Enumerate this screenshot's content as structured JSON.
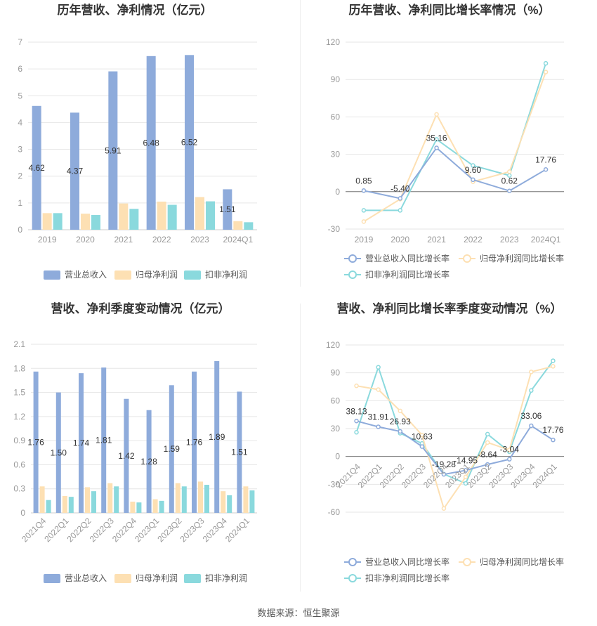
{
  "source": "数据来源：恒生聚源",
  "colors": {
    "revenue": "#8eabdb",
    "netprofit": "#fde0b3",
    "deducted": "#8ad9dd",
    "line_revenue": "#8eabdb",
    "line_netprofit": "#fde0b3",
    "line_deducted": "#8ad9dd",
    "axis": "#999999",
    "grid": "#e6e6e6",
    "title": "#333333"
  },
  "chart_data": [
    {
      "id": "annual-bars",
      "type": "bar",
      "title": "历年营收、净利情况（亿元）",
      "categories": [
        "2019",
        "2020",
        "2021",
        "2022",
        "2023",
        "2024Q1"
      ],
      "ylim": [
        0,
        7
      ],
      "yticks": [
        "0",
        "1",
        "2",
        "3",
        "4",
        "5",
        "6",
        "7"
      ],
      "series": [
        {
          "name": "营业总收入",
          "values": [
            4.62,
            4.37,
            5.91,
            6.48,
            6.52,
            1.51
          ],
          "labels": [
            "4.62",
            "4.37",
            "5.91",
            "6.48",
            "6.52",
            "1.51"
          ]
        },
        {
          "name": "归母净利润",
          "values": [
            0.62,
            0.6,
            0.98,
            1.05,
            1.22,
            0.32
          ]
        },
        {
          "name": "扣非净利润",
          "values": [
            0.62,
            0.55,
            0.78,
            0.93,
            1.06,
            0.28
          ]
        }
      ]
    },
    {
      "id": "annual-lines",
      "type": "line",
      "title": "历年营收、净利同比增长率情况（%）",
      "categories": [
        "2019",
        "2020",
        "2021",
        "2022",
        "2023",
        "2024Q1"
      ],
      "ylim": [
        -30,
        120
      ],
      "yticks": [
        "-30",
        "0",
        "30",
        "60",
        "90",
        "120"
      ],
      "series": [
        {
          "name": "营业总收入同比增长率",
          "values": [
            0.85,
            -5.4,
            35.16,
            9.6,
            0.62,
            17.76
          ],
          "labels": [
            "0.85",
            "-5.40",
            "35.16",
            "9.60",
            "0.62",
            "17.76"
          ]
        },
        {
          "name": "归母净利润同比增长率",
          "values": [
            -24,
            -6,
            62,
            8,
            16,
            96
          ]
        },
        {
          "name": "扣非净利润同比增长率",
          "values": [
            -15,
            -15,
            42,
            21,
            13,
            103
          ]
        }
      ]
    },
    {
      "id": "quarterly-bars",
      "type": "bar",
      "title": "营收、净利季度变动情况（亿元）",
      "categories": [
        "2021Q4",
        "2022Q1",
        "2022Q2",
        "2022Q3",
        "2022Q4",
        "2023Q1",
        "2023Q2",
        "2023Q3",
        "2023Q4",
        "2024Q1"
      ],
      "ylim": [
        0,
        2.1
      ],
      "yticks": [
        "0",
        "0.3",
        "0.6",
        "0.9",
        "1.2",
        "1.5",
        "1.8",
        "2.1"
      ],
      "series": [
        {
          "name": "营业总收入",
          "values": [
            1.76,
            1.5,
            1.74,
            1.81,
            1.42,
            1.28,
            1.59,
            1.76,
            1.89,
            1.51
          ],
          "labels": [
            "1.76",
            "1.50",
            "1.74",
            "1.81",
            "1.42",
            "1.28",
            "1.59",
            "1.76",
            "1.89",
            "1.51"
          ]
        },
        {
          "name": "归母净利润",
          "values": [
            0.33,
            0.21,
            0.32,
            0.37,
            0.14,
            0.17,
            0.37,
            0.39,
            0.27,
            0.33
          ]
        },
        {
          "name": "扣非净利润",
          "values": [
            0.16,
            0.2,
            0.27,
            0.33,
            0.13,
            0.15,
            0.33,
            0.35,
            0.22,
            0.28
          ]
        }
      ]
    },
    {
      "id": "quarterly-lines",
      "type": "line",
      "title": "营收、净利同比增长率季度变动情况（%）",
      "categories": [
        "2021Q4",
        "2022Q1",
        "2022Q2",
        "2022Q3",
        "2022Q4",
        "2023Q1",
        "2023Q2",
        "2023Q3",
        "2023Q4",
        "2024Q1"
      ],
      "ylim": [
        -60,
        120
      ],
      "yticks": [
        "-60",
        "-30",
        "0",
        "30",
        "60",
        "90",
        "120"
      ],
      "series": [
        {
          "name": "营业总收入同比增长率",
          "values": [
            38.13,
            31.91,
            26.93,
            10.63,
            -19.28,
            -14.95,
            -8.64,
            -3.04,
            33.06,
            17.76
          ],
          "labels": [
            "38.13",
            "31.91",
            "26.93",
            "10.63",
            "-19.28",
            "-14.95",
            "-8.64",
            "-3.04",
            "33.06",
            "17.76"
          ]
        },
        {
          "name": "归母净利润同比增长率",
          "values": [
            76,
            72,
            49,
            23,
            -56,
            -22,
            15,
            7,
            91,
            97
          ]
        },
        {
          "name": "扣非净利润同比增长率",
          "values": [
            26,
            96,
            25,
            14,
            -19,
            -29,
            24,
            5,
            71,
            103
          ]
        }
      ]
    }
  ]
}
